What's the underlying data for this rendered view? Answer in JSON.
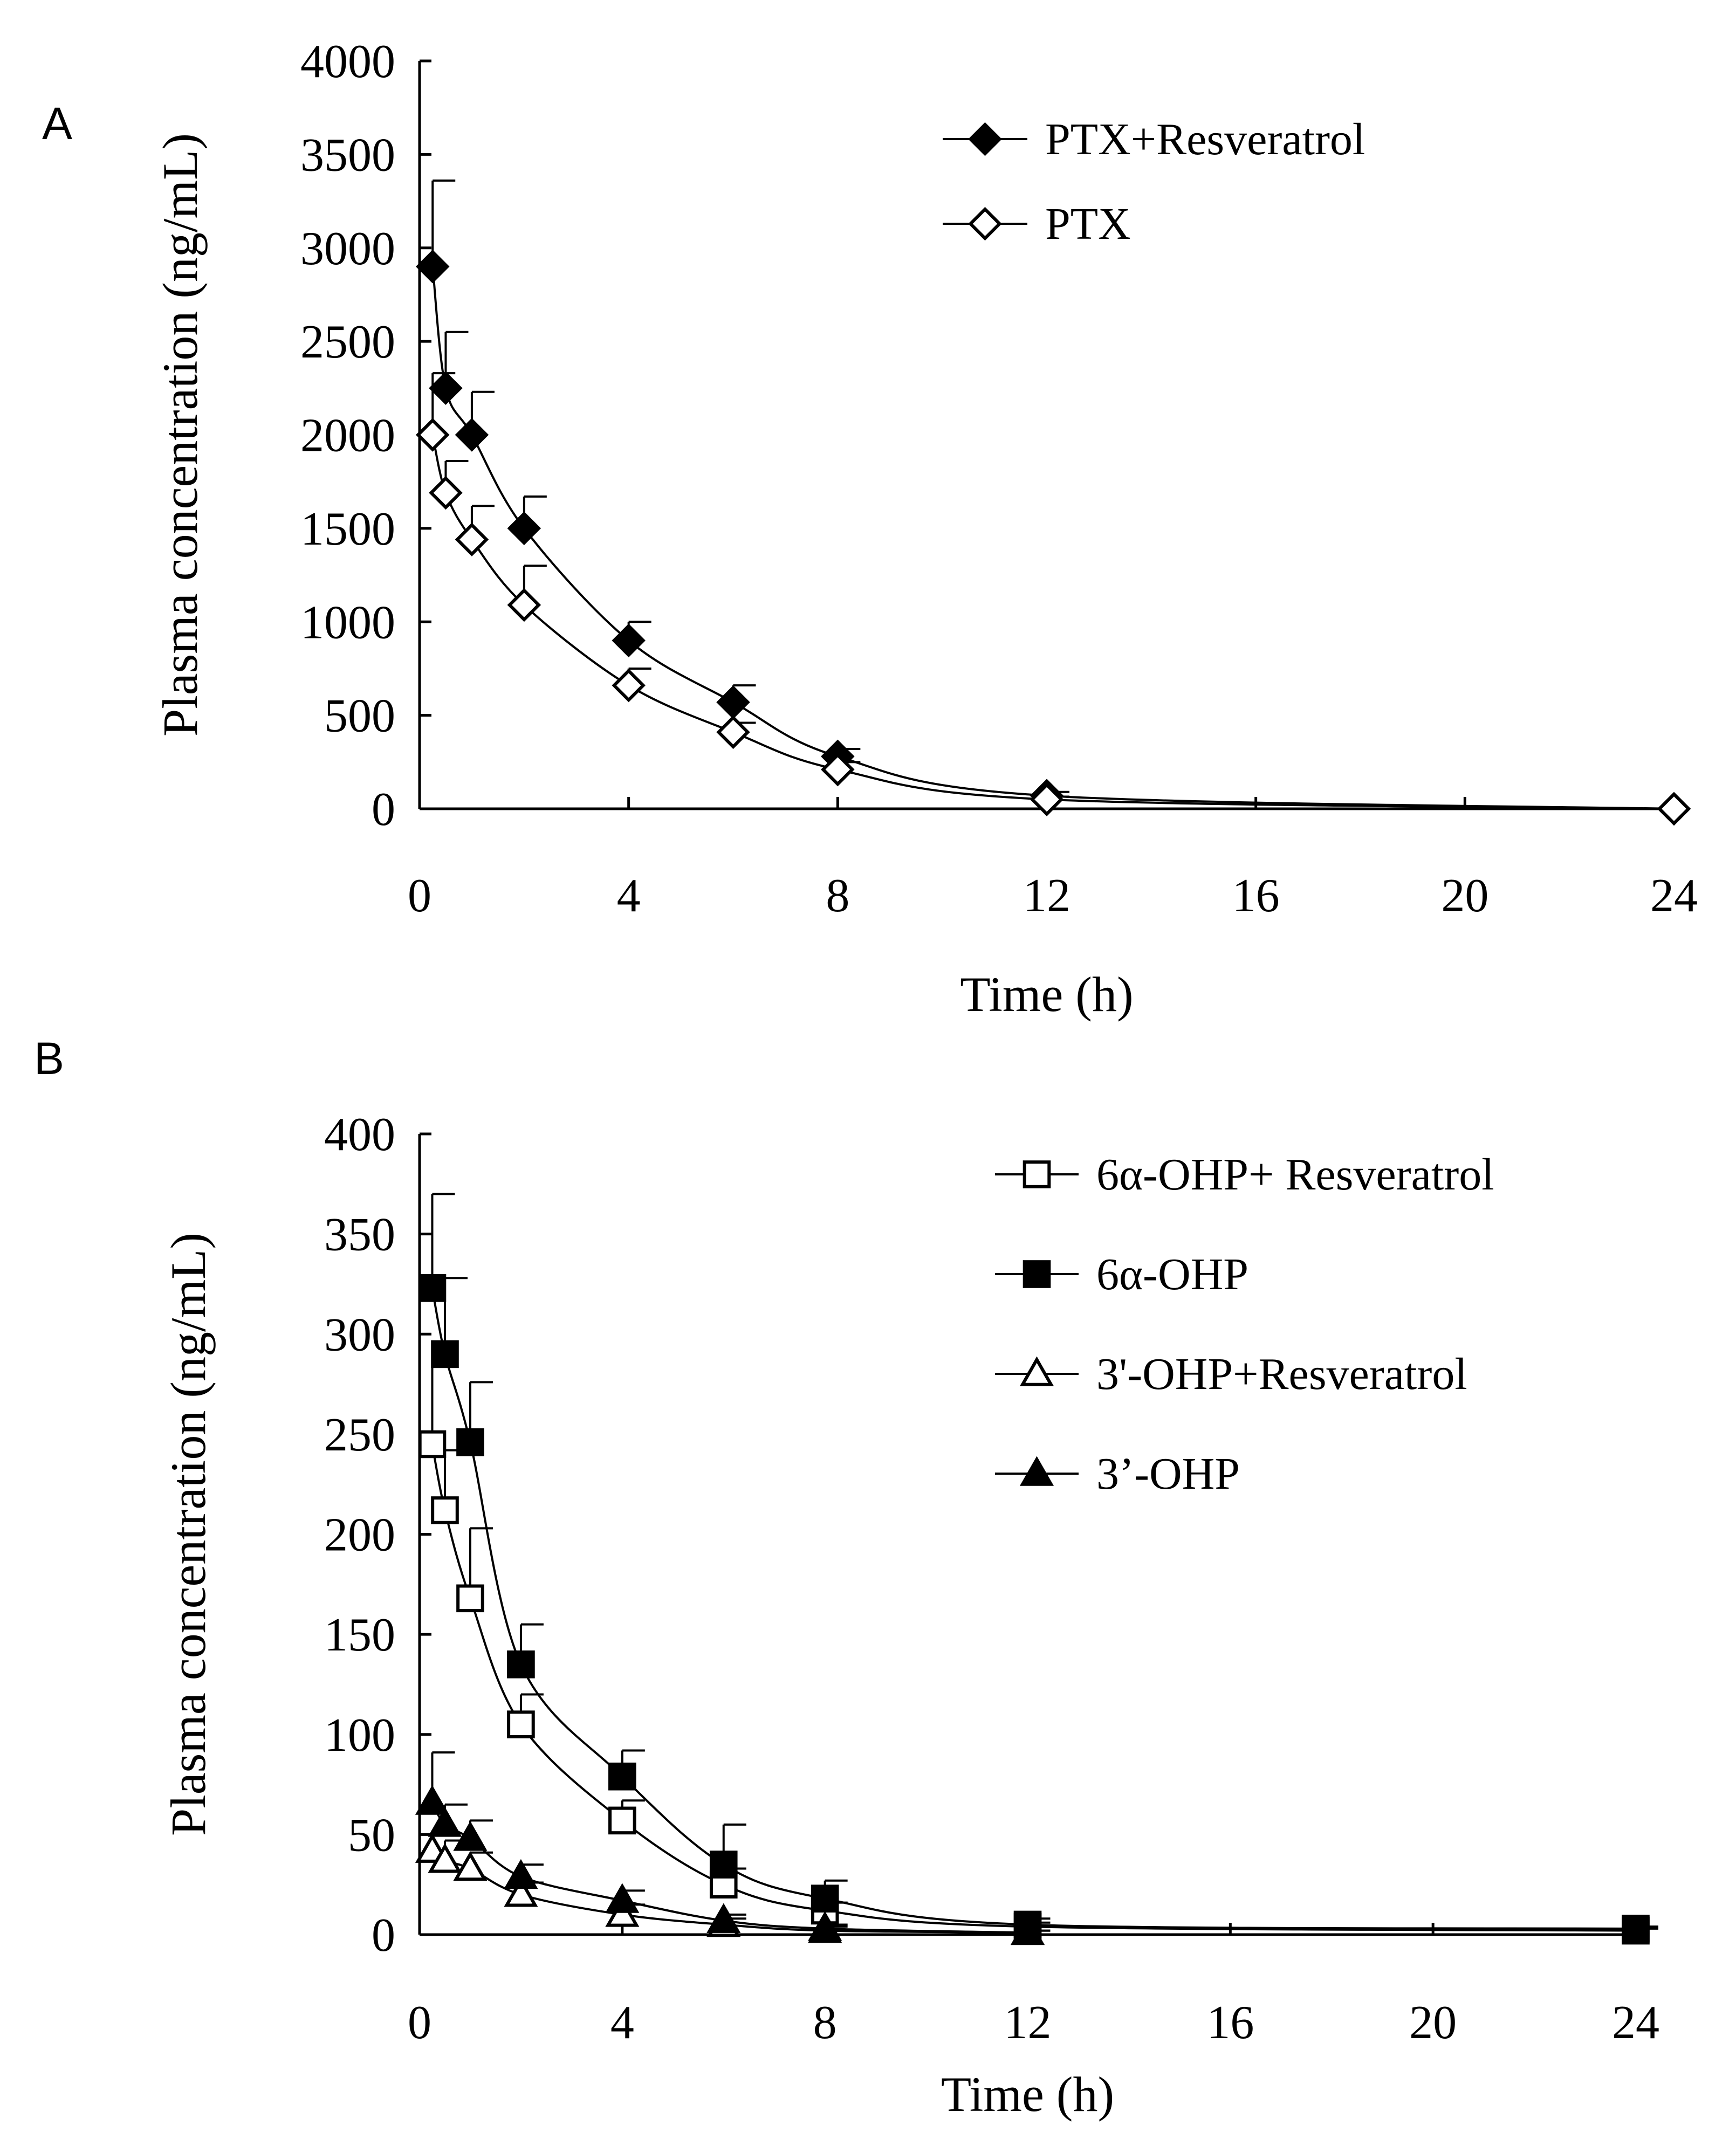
{
  "chart_data": [
    {
      "panel": "A",
      "type": "line",
      "xlabel": "Time (h)",
      "ylabel": "Plasma concentration (ng/mL)",
      "xlim": [
        0,
        24
      ],
      "ylim": [
        0,
        4000
      ],
      "xticks": [
        0,
        4,
        8,
        12,
        16,
        20,
        24
      ],
      "yticks": [
        0,
        500,
        1000,
        1500,
        2000,
        2500,
        3000,
        3500,
        4000
      ],
      "legend_position": "top-right",
      "series": [
        {
          "name": "PTX+Resveratrol",
          "marker": "diamond-filled",
          "x": [
            0.25,
            0.5,
            1,
            2,
            4,
            6,
            8,
            12,
            24
          ],
          "y": [
            2900,
            2250,
            2000,
            1500,
            900,
            570,
            280,
            70,
            0
          ],
          "err": [
            460,
            300,
            230,
            170,
            100,
            90,
            40,
            20,
            0
          ]
        },
        {
          "name": "PTX",
          "marker": "diamond-open",
          "x": [
            0.25,
            0.5,
            1,
            2,
            4,
            6,
            8,
            12,
            24
          ],
          "y": [
            2000,
            1690,
            1440,
            1090,
            660,
            410,
            210,
            50,
            0
          ],
          "err": [
            330,
            170,
            180,
            210,
            90,
            50,
            40,
            15,
            0
          ]
        }
      ]
    },
    {
      "panel": "B",
      "type": "line",
      "xlabel": "Time (h)",
      "ylabel": "Plasma concentration (ng/mL)",
      "xlim": [
        0,
        24
      ],
      "ylim": [
        0,
        400
      ],
      "xticks": [
        0,
        4,
        8,
        12,
        16,
        20,
        24
      ],
      "yticks": [
        0,
        50,
        100,
        150,
        200,
        250,
        300,
        350,
        400
      ],
      "legend_position": "top-right",
      "series": [
        {
          "name": "6α-OHP+ Resveratrol",
          "marker": "square-open",
          "x": [
            0.25,
            0.5,
            1,
            2,
            4,
            6,
            8,
            12,
            24
          ],
          "y": [
            245,
            212,
            168,
            105,
            57,
            25,
            12,
            4,
            2
          ],
          "err": [
            50,
            30,
            35,
            15,
            10,
            8,
            4,
            2,
            1
          ]
        },
        {
          "name": "6α-OHP",
          "marker": "square-filled",
          "x": [
            0.25,
            0.5,
            1,
            2,
            4,
            6,
            8,
            12,
            24
          ],
          "y": [
            323,
            290,
            246,
            135,
            79,
            35,
            18,
            5,
            3
          ],
          "err": [
            47,
            38,
            30,
            20,
            13,
            20,
            9,
            3,
            1
          ]
        },
        {
          "name": "3'-OHP+Resveratrol",
          "marker": "triangle-open",
          "x": [
            0.25,
            0.5,
            1,
            2,
            4,
            6,
            8,
            12
          ],
          "y": [
            42,
            37,
            33,
            20,
            10,
            5,
            2,
            1
          ],
          "err": [
            10,
            10,
            8,
            6,
            5,
            3,
            2,
            1
          ]
        },
        {
          "name": "3’-OHP",
          "marker": "triangle-filled",
          "x": [
            0.25,
            0.5,
            1,
            2,
            4,
            6,
            8,
            12
          ],
          "y": [
            66,
            55,
            48,
            29,
            17,
            7,
            3,
            1
          ],
          "err": [
            25,
            10,
            9,
            6,
            5,
            3,
            2,
            1
          ]
        }
      ]
    }
  ]
}
